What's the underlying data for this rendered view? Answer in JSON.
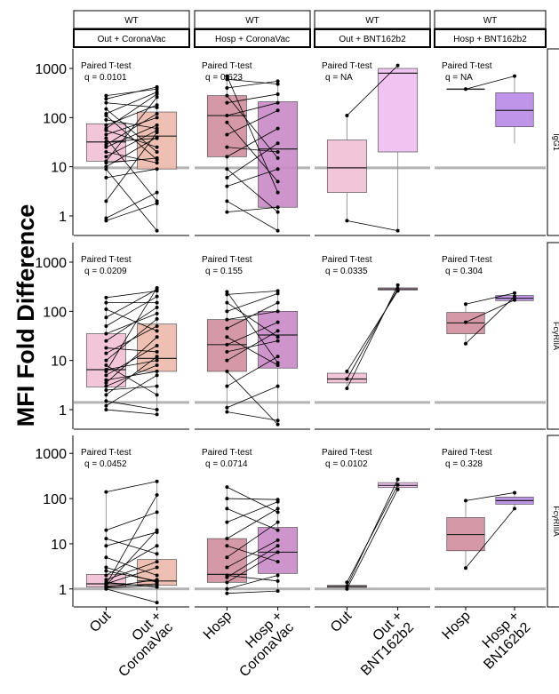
{
  "chart_data": {
    "type": "box",
    "ylabel": "MFI Fold Difference",
    "xlabel": "",
    "yscale": "log10",
    "ylim": [
      0.4,
      2500
    ],
    "yticks": [
      1,
      10,
      100,
      1000
    ],
    "ytick_labels": [
      "1",
      "10",
      "100",
      "1000"
    ],
    "columns": [
      {
        "top": "WT",
        "bottom": "Out + CoronaVac",
        "categories": [
          "Out",
          "Out +\nCoronaVac"
        ]
      },
      {
        "top": "WT",
        "bottom": "Hosp + CoronaVac",
        "categories": [
          "Hosp",
          "Hosp +\nCoronaVac"
        ]
      },
      {
        "top": "WT",
        "bottom": "Out + BNT162b2",
        "categories": [
          "Out",
          "Out +\nBNT162b2"
        ]
      },
      {
        "top": "WT",
        "bottom": "Hosp + BNT162b2",
        "categories": [
          "Hosp",
          "Hosp +\nBN162b2"
        ]
      }
    ],
    "rows": [
      {
        "label": "IgG1",
        "baseline": 9.5
      },
      {
        "label": "FcγRIIA",
        "baseline": 1.4
      },
      {
        "label": "FcγRIIIA",
        "baseline": 1.0
      }
    ],
    "panels": [
      {
        "row": 0,
        "col": 0,
        "test": "Paired T-test",
        "q": "q = 0.0101",
        "boxes": [
          {
            "q1": 13,
            "median": 32,
            "q3": 75,
            "lo": 0.8,
            "hi": 280,
            "color": "#f2bfd5"
          },
          {
            "q1": 9,
            "median": 42,
            "q3": 130,
            "lo": 0.5,
            "hi": 420,
            "color": "#ecb9ab"
          }
        ],
        "pairs": [
          [
            0.8,
            1.8
          ],
          [
            0.9,
            3
          ],
          [
            2,
            50
          ],
          [
            6,
            9
          ],
          [
            9,
            0.5
          ],
          [
            10,
            40
          ],
          [
            12,
            15
          ],
          [
            13,
            260
          ],
          [
            16,
            55
          ],
          [
            20,
            12
          ],
          [
            25,
            70
          ],
          [
            28,
            120
          ],
          [
            32,
            38
          ],
          [
            38,
            2
          ],
          [
            45,
            100
          ],
          [
            55,
            25
          ],
          [
            70,
            180
          ],
          [
            90,
            60
          ],
          [
            120,
            330
          ],
          [
            150,
            20
          ],
          [
            200,
            160
          ],
          [
            240,
            420
          ],
          [
            280,
            380
          ],
          [
            110,
            14
          ],
          [
            60,
            300
          ]
        ]
      },
      {
        "row": 0,
        "col": 1,
        "test": "Paired T-test",
        "q": "q = 0.623",
        "boxes": [
          {
            "q1": 16,
            "median": 110,
            "q3": 280,
            "lo": 1.2,
            "hi": 700,
            "color": "#cf8d9c"
          },
          {
            "q1": 1.5,
            "median": 23,
            "q3": 210,
            "lo": 0.5,
            "hi": 550,
            "color": "#c98ac8"
          }
        ],
        "pairs": [
          [
            1.2,
            1.5
          ],
          [
            2,
            0.5
          ],
          [
            4,
            9
          ],
          [
            6,
            30
          ],
          [
            9,
            1.2
          ],
          [
            16,
            60
          ],
          [
            25,
            20
          ],
          [
            45,
            140
          ],
          [
            80,
            5
          ],
          [
            110,
            200
          ],
          [
            200,
            300
          ],
          [
            280,
            15
          ],
          [
            400,
            550
          ],
          [
            600,
            480
          ],
          [
            700,
            3
          ]
        ]
      },
      {
        "row": 0,
        "col": 2,
        "test": "Paired T-test",
        "q": "q = NA",
        "boxes": [
          {
            "q1": 3,
            "median": 9.5,
            "q3": 35,
            "lo": 0.8,
            "hi": 110,
            "color": "#f2bfd5"
          },
          {
            "q1": 20,
            "median": 800,
            "q3": 1000,
            "lo": 0.5,
            "hi": 1150,
            "color": "#eebdee"
          }
        ],
        "pairs": [
          [
            0.8,
            0.5
          ],
          [
            110,
            1150
          ]
        ]
      },
      {
        "row": 0,
        "col": 3,
        "test": "Paired T-test",
        "q": "q = NA",
        "boxes": [
          {
            "q1": 380,
            "median": 380,
            "q3": 380,
            "lo": 380,
            "hi": 380,
            "color": "#cf8d9c"
          },
          {
            "q1": 65,
            "median": 140,
            "q3": 320,
            "lo": 30,
            "hi": 700,
            "color": "#b78ae6"
          }
        ],
        "pairs": [
          [
            380,
            700
          ]
        ]
      },
      {
        "row": 1,
        "col": 0,
        "test": "Paired T-test",
        "q": "q = 0.0209",
        "boxes": [
          {
            "q1": 2.9,
            "median": 6.5,
            "q3": 35,
            "lo": 1.0,
            "hi": 190,
            "color": "#f2bfd5"
          },
          {
            "q1": 6,
            "median": 11,
            "q3": 55,
            "lo": 0.8,
            "hi": 300,
            "color": "#ecb9ab"
          }
        ],
        "pairs": [
          [
            1,
            0.8
          ],
          [
            1.2,
            5
          ],
          [
            1.5,
            1
          ],
          [
            2,
            12
          ],
          [
            3,
            8
          ],
          [
            3.5,
            30
          ],
          [
            4,
            6
          ],
          [
            5,
            20
          ],
          [
            6.5,
            10
          ],
          [
            8,
            2
          ],
          [
            10,
            70
          ],
          [
            14,
            50
          ],
          [
            18,
            15
          ],
          [
            25,
            120
          ],
          [
            35,
            90
          ],
          [
            50,
            200
          ],
          [
            75,
            280
          ],
          [
            110,
            40
          ],
          [
            150,
            150
          ],
          [
            190,
            260
          ],
          [
            6,
            300
          ],
          [
            2.5,
            3
          ]
        ]
      },
      {
        "row": 1,
        "col": 1,
        "test": "Paired T-test",
        "q": "q = 0.155",
        "boxes": [
          {
            "q1": 6,
            "median": 21,
            "q3": 68,
            "lo": 0.9,
            "hi": 250,
            "color": "#cf8d9c"
          },
          {
            "q1": 7,
            "median": 33,
            "q3": 100,
            "lo": 0.5,
            "hi": 260,
            "color": "#c98ac8"
          }
        ],
        "pairs": [
          [
            0.9,
            0.6
          ],
          [
            1.1,
            3
          ],
          [
            3,
            12
          ],
          [
            6,
            0.5
          ],
          [
            10,
            40
          ],
          [
            15,
            25
          ],
          [
            21,
            60
          ],
          [
            30,
            8
          ],
          [
            45,
            150
          ],
          [
            68,
            100
          ],
          [
            100,
            230
          ],
          [
            150,
            30
          ],
          [
            220,
            260
          ],
          [
            250,
            9
          ]
        ]
      },
      {
        "row": 1,
        "col": 2,
        "test": "Paired T-test",
        "q": "q = 0.0335",
        "boxes": [
          {
            "q1": 3.5,
            "median": 4.2,
            "q3": 5.5,
            "lo": 2.7,
            "hi": 6,
            "color": "#f2bfd5"
          },
          {
            "q1": 270,
            "median": 285,
            "q3": 300,
            "lo": 260,
            "hi": 340,
            "color": "#eebdee"
          }
        ],
        "pairs": [
          [
            2.7,
            340
          ],
          [
            4.2,
            290
          ],
          [
            6,
            260
          ]
        ]
      },
      {
        "row": 1,
        "col": 3,
        "test": "Paired T-test",
        "q": "q = 0.304",
        "boxes": [
          {
            "q1": 35,
            "median": 58,
            "q3": 95,
            "lo": 22,
            "hi": 140,
            "color": "#cf8d9c"
          },
          {
            "q1": 165,
            "median": 185,
            "q3": 210,
            "lo": 160,
            "hi": 235,
            "color": "#b78ae6"
          }
        ],
        "pairs": [
          [
            22,
            200
          ],
          [
            60,
            170
          ],
          [
            140,
            235
          ]
        ]
      },
      {
        "row": 2,
        "col": 0,
        "test": "Paired T-test",
        "q": "q = 0.0452",
        "boxes": [
          {
            "q1": 1.1,
            "median": 1.3,
            "q3": 2.1,
            "lo": 1.0,
            "hi": 140,
            "color": "#f2bfd5"
          },
          {
            "q1": 1.2,
            "median": 1.5,
            "q3": 4.5,
            "lo": 0.5,
            "hi": 240,
            "color": "#ecb9ab"
          }
        ],
        "pairs": [
          [
            1,
            0.5
          ],
          [
            1.05,
            1.2
          ],
          [
            1.1,
            1.6
          ],
          [
            1.15,
            1.3
          ],
          [
            1.2,
            20
          ],
          [
            1.3,
            3
          ],
          [
            1.4,
            1.1
          ],
          [
            1.6,
            4
          ],
          [
            2,
            9
          ],
          [
            3,
            1.4
          ],
          [
            5,
            2
          ],
          [
            9,
            18
          ],
          [
            13,
            6
          ],
          [
            20,
            50
          ],
          [
            140,
            240
          ],
          [
            1.25,
            120
          ],
          [
            2.5,
            1.5
          ]
        ]
      },
      {
        "row": 2,
        "col": 1,
        "test": "Paired T-test",
        "q": "q = 0.0714",
        "boxes": [
          {
            "q1": 1.4,
            "median": 2.1,
            "q3": 13,
            "lo": 0.8,
            "hi": 180,
            "color": "#cf8d9c"
          },
          {
            "q1": 2.2,
            "median": 6.5,
            "q3": 23,
            "lo": 0.9,
            "hi": 95,
            "color": "#c98ac8"
          }
        ],
        "pairs": [
          [
            0.8,
            0.9
          ],
          [
            1,
            2
          ],
          [
            1.4,
            6.5
          ],
          [
            2,
            1.5
          ],
          [
            3,
            12
          ],
          [
            5,
            30
          ],
          [
            9,
            4
          ],
          [
            13,
            60
          ],
          [
            30,
            85
          ],
          [
            60,
            20
          ],
          [
            100,
            95
          ],
          [
            180,
            50
          ],
          [
            1.8,
            9
          ]
        ]
      },
      {
        "row": 2,
        "col": 2,
        "test": "Paired T-test",
        "q": "q = 0.0102",
        "boxes": [
          {
            "q1": 1.08,
            "median": 1.14,
            "q3": 1.2,
            "lo": 1.0,
            "hi": 1.4,
            "color": "#f2bfd5"
          },
          {
            "q1": 175,
            "median": 195,
            "q3": 225,
            "lo": 160,
            "hi": 265,
            "color": "#eebdee"
          }
        ],
        "pairs": [
          [
            1.0,
            160
          ],
          [
            1.15,
            265
          ],
          [
            1.4,
            200
          ]
        ]
      },
      {
        "row": 2,
        "col": 3,
        "test": "Paired T-test",
        "q": "q = 0.328",
        "boxes": [
          {
            "q1": 7,
            "median": 16,
            "q3": 38,
            "lo": 2.9,
            "hi": 90,
            "color": "#cf8d9c"
          },
          {
            "q1": 75,
            "median": 90,
            "q3": 108,
            "lo": 60,
            "hi": 135,
            "color": "#b78ae6"
          }
        ],
        "pairs": [
          [
            2.9,
            60
          ],
          [
            90,
            135
          ]
        ]
      }
    ],
    "grid": false,
    "legend": "none"
  }
}
